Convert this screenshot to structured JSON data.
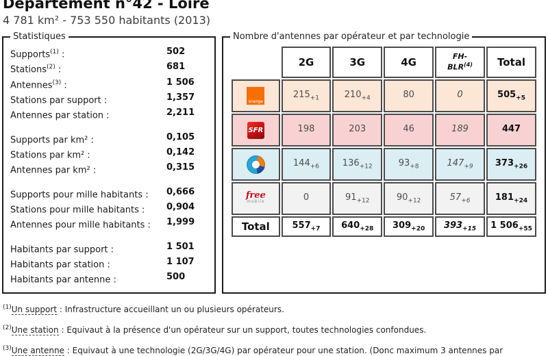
{
  "page": {
    "title": "Département n°42 - Loire",
    "subtitle": "4 781 km² - 753 550 habitants (2013)"
  },
  "stats": {
    "legend": "Statistiques",
    "groups": [
      {
        "rows": [
          {
            "label": "Supports",
            "sup": "(1)",
            "suffix": " :",
            "value": "502"
          },
          {
            "label": "Stations",
            "sup": "(2)",
            "suffix": " :",
            "value": "681"
          },
          {
            "label": "Antennes",
            "sup": "(3)",
            "suffix": " :",
            "value": "1 506"
          },
          {
            "label": "Stations par support",
            "sup": "",
            "suffix": " :",
            "value": "1,357"
          },
          {
            "label": "Antennes par station",
            "sup": "",
            "suffix": " :",
            "value": "2,211"
          }
        ]
      },
      {
        "rows": [
          {
            "label": "Supports par km²",
            "sup": "",
            "suffix": " :",
            "value": "0,105"
          },
          {
            "label": "Stations par km²",
            "sup": "",
            "suffix": " :",
            "value": "0,142"
          },
          {
            "label": "Antennes par km²",
            "sup": "",
            "suffix": " :",
            "value": "0,315"
          }
        ]
      },
      {
        "rows": [
          {
            "label": "Supports pour mille habitants",
            "sup": "",
            "suffix": " :",
            "value": "0,666"
          },
          {
            "label": "Stations pour mille habitants",
            "sup": "",
            "suffix": " :",
            "value": "0,904"
          },
          {
            "label": "Antennes pour mille habitants",
            "sup": "",
            "suffix": " :",
            "value": "1,999"
          }
        ]
      },
      {
        "rows": [
          {
            "label": "Habitants par support",
            "sup": "",
            "suffix": " :",
            "value": "1 501"
          },
          {
            "label": "Habitants par station",
            "sup": "",
            "suffix": " :",
            "value": "1 107"
          },
          {
            "label": "Habitants par antenne",
            "sup": "",
            "suffix": " :",
            "value": "500"
          }
        ]
      }
    ]
  },
  "antenna_table": {
    "legend": "Nombre d'antennes par opérateur et par technologie",
    "headers": {
      "g2": "2G",
      "g3": "3G",
      "g4": "4G",
      "fh_line1": "FH-",
      "fh_line2": "BLR",
      "fh_sup": "(4)",
      "total": "Total"
    },
    "logos": {
      "orange": "orange",
      "sfr": "SFR",
      "free_main": "free",
      "free_sub": "mobile"
    },
    "rows": [
      {
        "operator": "orange",
        "cells": [
          {
            "v": "215",
            "d": "+1"
          },
          {
            "v": "210",
            "d": "+4"
          },
          {
            "v": "80",
            "d": ""
          },
          {
            "v": "0",
            "d": ""
          },
          {
            "v": "505",
            "d": "+5"
          }
        ]
      },
      {
        "operator": "sfr",
        "cells": [
          {
            "v": "198",
            "d": ""
          },
          {
            "v": "203",
            "d": ""
          },
          {
            "v": "46",
            "d": ""
          },
          {
            "v": "189",
            "d": ""
          },
          {
            "v": "447",
            "d": ""
          }
        ]
      },
      {
        "operator": "bouygues",
        "cells": [
          {
            "v": "144",
            "d": "+6"
          },
          {
            "v": "136",
            "d": "+12"
          },
          {
            "v": "93",
            "d": "+8"
          },
          {
            "v": "147",
            "d": "+9"
          },
          {
            "v": "373",
            "d": "+26"
          }
        ]
      },
      {
        "operator": "free",
        "cells": [
          {
            "v": "0",
            "d": ""
          },
          {
            "v": "91",
            "d": "+12"
          },
          {
            "v": "90",
            "d": "+12"
          },
          {
            "v": "57",
            "d": "+6"
          },
          {
            "v": "181",
            "d": "+24"
          }
        ]
      }
    ],
    "total_row": {
      "label": "Total",
      "cells": [
        {
          "v": "557",
          "d": "+7"
        },
        {
          "v": "640",
          "d": "+28"
        },
        {
          "v": "309",
          "d": "+20"
        },
        {
          "v": "393",
          "d": "+15"
        },
        {
          "v": "1 506",
          "d": "+55"
        }
      ]
    },
    "colors": {
      "orange_row_bg": "#fce6d5",
      "sfr_row_bg": "#f8d2d2",
      "bouygues_row_bg": "#dbeef4",
      "free_row_bg": "#f2f2f2",
      "orange_brand": "#f76e06",
      "sfr_brand": "#c01010",
      "free_brand": "#cc0616"
    }
  },
  "footnotes": [
    {
      "sup": "(1)",
      "term": "Un support",
      "text": " : Infrastructure accueillant un ou plusieurs opérateurs."
    },
    {
      "sup": "(2)",
      "term": "Une station",
      "text": " : Equivaut à la présence d'un opérateur sur un support, toutes technologies confondues."
    },
    {
      "sup": "(3)",
      "term": "Une antenne",
      "text": " : Equivaut à une technologie (2G/3G/4G) par opérateur pour une station. (Donc maximum 3 antennes par"
    }
  ]
}
